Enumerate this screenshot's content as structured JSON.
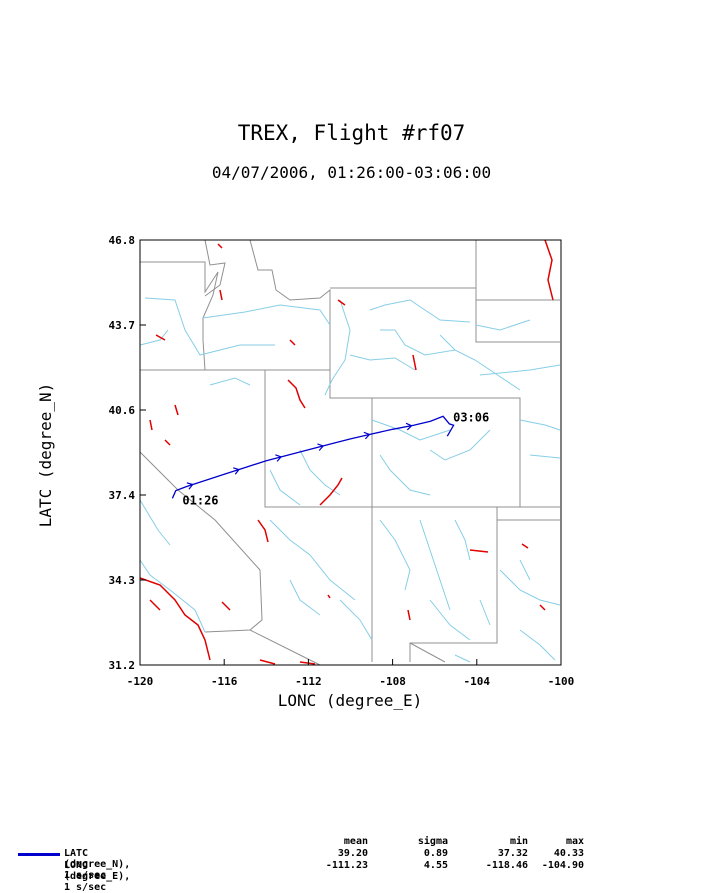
{
  "title": "TREX, Flight #rf07",
  "subtitle": "04/07/2006, 01:26:00-03:06:00",
  "chart_data": {
    "type": "map-track",
    "xlabel": "LONC (degree_E)",
    "ylabel": "LATC (degree_N)",
    "xlim": [
      -120,
      -100
    ],
    "ylim": [
      31.2,
      46.8
    ],
    "x_ticks": [
      "-120",
      "-116",
      "-112",
      "-108",
      "-104",
      "-100"
    ],
    "y_ticks": [
      "31.2",
      "34.3",
      "37.4",
      "40.6",
      "43.7",
      "46.8"
    ],
    "colors": {
      "track": "#0000cc",
      "rivers": "#87cee6",
      "lakes": "#e00000",
      "borders": "#909090"
    },
    "track": {
      "points": [
        [
          -118.46,
          37.32
        ],
        [
          -118.3,
          37.6
        ],
        [
          -117.8,
          37.75
        ],
        [
          -117,
          37.95
        ],
        [
          -116,
          38.2
        ],
        [
          -115,
          38.45
        ],
        [
          -114,
          38.7
        ],
        [
          -113,
          38.9
        ],
        [
          -112,
          39.1
        ],
        [
          -111,
          39.3
        ],
        [
          -110,
          39.5
        ],
        [
          -109,
          39.68
        ],
        [
          -108,
          39.85
        ],
        [
          -107,
          40.0
        ],
        [
          -106.2,
          40.15
        ],
        [
          -105.6,
          40.33
        ],
        [
          -105.3,
          40.05
        ],
        [
          -105.1,
          40.0
        ],
        [
          -105.4,
          39.6
        ]
      ],
      "arrows_at_lon": [
        -117.5,
        -115.3,
        -113.3,
        -111.3,
        -109.1,
        -107.1,
        -105.0
      ],
      "start_label": "01:26",
      "end_label": "03:06"
    }
  },
  "legend": {
    "headers": [
      "mean",
      "sigma",
      "min",
      "max"
    ],
    "rows": [
      {
        "label": "LATC (degree_N), 1 s/sec",
        "mean": "39.20",
        "sigma": "0.89",
        "min": "37.32",
        "max": "40.33"
      },
      {
        "label": "LONC (degree_E), 1 s/sec",
        "mean": "-111.23",
        "sigma": "4.55",
        "min": "-118.46",
        "max": "-104.90"
      }
    ]
  }
}
